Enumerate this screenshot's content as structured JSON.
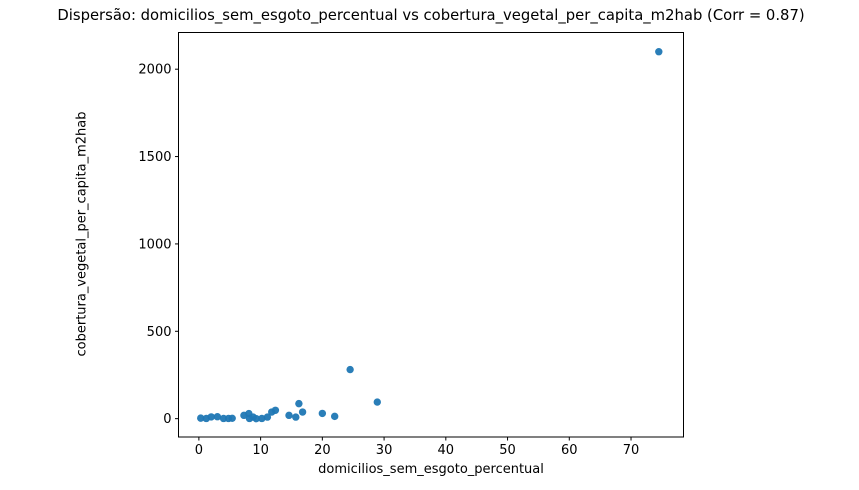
{
  "chart_data": {
    "type": "scatter",
    "title": "Dispersão: domicilios_sem_esgoto_percentual vs cobertura_vegetal_per_capita_m2hab (Corr = 0.87)",
    "xlabel": "domicilios_sem_esgoto_percentual",
    "ylabel": "cobertura_vegetal_per_capita_m2hab",
    "correlation": 0.87,
    "marker_color": "#1f77b4",
    "axis_color": "#000000",
    "background_color": "#ffffff",
    "legend": "none",
    "grid": false,
    "xlim": [
      -3.3,
      78.5
    ],
    "ylim": [
      -105,
      2210
    ],
    "xticks": [
      0,
      10,
      20,
      30,
      40,
      50,
      60,
      70
    ],
    "yticks": [
      0,
      500,
      1000,
      1500,
      2000
    ],
    "points": [
      [
        0.3,
        3
      ],
      [
        1.2,
        1
      ],
      [
        2.0,
        10
      ],
      [
        3.0,
        11
      ],
      [
        4.0,
        1
      ],
      [
        4.8,
        1
      ],
      [
        5.4,
        2
      ],
      [
        7.3,
        19
      ],
      [
        8.1,
        29
      ],
      [
        8.2,
        1
      ],
      [
        8.8,
        9
      ],
      [
        9.3,
        0
      ],
      [
        10.2,
        1
      ],
      [
        11.1,
        9
      ],
      [
        11.8,
        38
      ],
      [
        12.4,
        48
      ],
      [
        14.6,
        19
      ],
      [
        15.7,
        9
      ],
      [
        16.2,
        86
      ],
      [
        16.8,
        38
      ],
      [
        20.0,
        30
      ],
      [
        22.0,
        13
      ],
      [
        24.5,
        281
      ],
      [
        28.9,
        95
      ],
      [
        74.5,
        2100
      ]
    ]
  }
}
